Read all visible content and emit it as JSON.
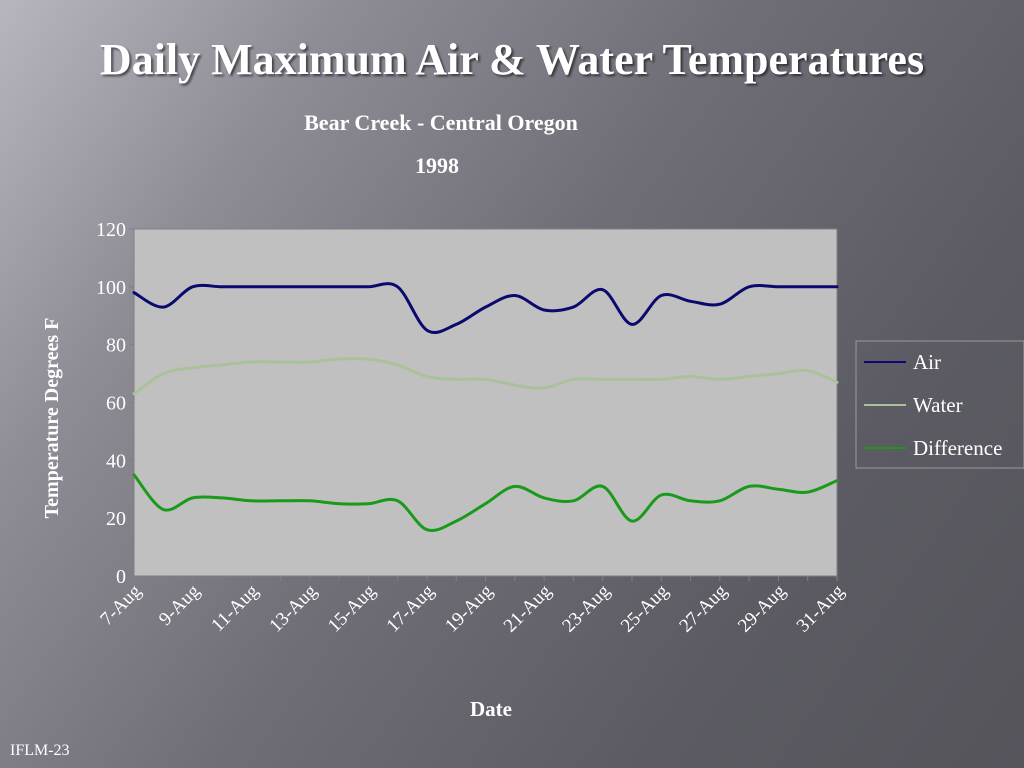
{
  "slide": {
    "title": "Daily Maximum Air & Water Temperatures",
    "footer": "IFLM-23"
  },
  "colors": {
    "plot_background": "#c0c0c0",
    "air": "#0a0a6e",
    "water": "#a9c29a",
    "difference": "#1a9a1a"
  },
  "chart_data": {
    "type": "line",
    "title": "Bear Creek - Central Oregon",
    "subtitle": "1998",
    "xlabel": "Date",
    "ylabel": "Temperature Degrees F",
    "ylim": [
      0,
      120
    ],
    "y_ticks": [
      0,
      20,
      40,
      60,
      80,
      100,
      120
    ],
    "grid": false,
    "legend": "right",
    "x": [
      "7-Aug",
      "8-Aug",
      "9-Aug",
      "10-Aug",
      "11-Aug",
      "12-Aug",
      "13-Aug",
      "14-Aug",
      "15-Aug",
      "16-Aug",
      "17-Aug",
      "18-Aug",
      "19-Aug",
      "20-Aug",
      "21-Aug",
      "22-Aug",
      "23-Aug",
      "24-Aug",
      "25-Aug",
      "26-Aug",
      "27-Aug",
      "28-Aug",
      "29-Aug",
      "30-Aug",
      "31-Aug"
    ],
    "x_tick_labels": [
      "7-Aug",
      "9-Aug",
      "11-Aug",
      "13-Aug",
      "15-Aug",
      "17-Aug",
      "19-Aug",
      "21-Aug",
      "23-Aug",
      "25-Aug",
      "27-Aug",
      "29-Aug",
      "31-Aug"
    ],
    "series": [
      {
        "name": "Air",
        "values": [
          98,
          93,
          100,
          100,
          100,
          100,
          100,
          100,
          100,
          100,
          85,
          87,
          93,
          97,
          92,
          93,
          99,
          87,
          97,
          95,
          94,
          100,
          100,
          100,
          100
        ]
      },
      {
        "name": "Water",
        "values": [
          63,
          70,
          72,
          73,
          74,
          74,
          74,
          75,
          75,
          73,
          69,
          68,
          68,
          66,
          65,
          68,
          68,
          68,
          68,
          69,
          68,
          69,
          70,
          71,
          67
        ]
      },
      {
        "name": "Difference",
        "values": [
          35,
          23,
          27,
          27,
          26,
          26,
          26,
          25,
          25,
          26,
          16,
          19,
          25,
          31,
          27,
          26,
          31,
          19,
          28,
          26,
          26,
          31,
          30,
          29,
          33
        ]
      }
    ]
  }
}
